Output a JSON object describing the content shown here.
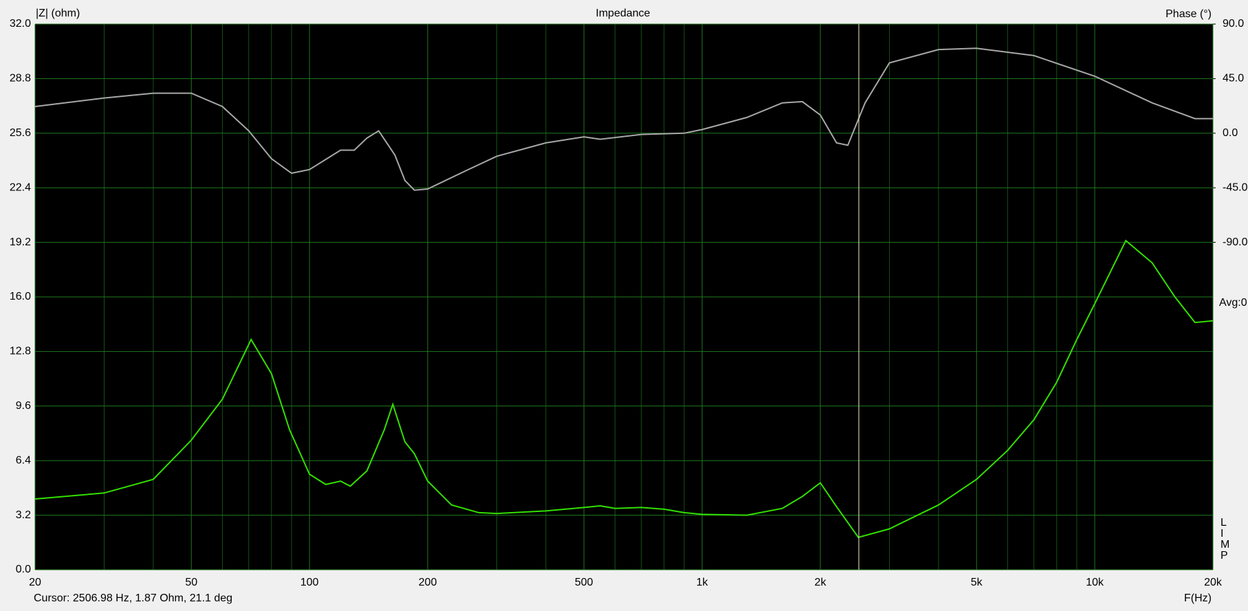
{
  "chart_data": {
    "type": "line",
    "title": "Impedance",
    "y_label": "|Z| (ohm)",
    "y2_label": "Phase (°)",
    "x_label": "F(Hz)",
    "log_x": true,
    "xlim": [
      20,
      20000
    ],
    "xticks": [
      20,
      50,
      100,
      200,
      500,
      {
        "value": 1000,
        "label": "1k"
      },
      {
        "value": 2000,
        "label": "2k"
      },
      {
        "value": 5000,
        "label": "5k"
      },
      {
        "value": 10000,
        "label": "10k"
      },
      {
        "value": 20000,
        "label": "20k"
      }
    ],
    "xgrid": [
      30,
      40,
      60,
      70,
      80,
      90,
      300,
      400,
      600,
      700,
      800,
      900,
      3000,
      4000,
      6000,
      7000,
      8000,
      9000
    ],
    "ylim": [
      0,
      32
    ],
    "yticks": [
      {
        "value": 0,
        "label": "0.0"
      },
      3.2,
      6.4,
      9.6,
      12.8,
      {
        "value": 16,
        "label": "16.0"
      },
      19.2,
      22.4,
      25.6,
      28.8,
      {
        "value": 32,
        "label": "32.0"
      }
    ],
    "y2lim": [
      -360,
      90
    ],
    "y2ticks": [
      {
        "value": -90,
        "label": "-90.0"
      },
      {
        "value": -45,
        "label": "-45.0"
      },
      {
        "value": 0,
        "label": "0.0"
      },
      {
        "value": 45,
        "label": "45.0"
      },
      {
        "value": 90,
        "label": "90.0"
      }
    ],
    "grid": true,
    "avg_label": "Avg:0",
    "side_letters": [
      "L",
      "I",
      "M",
      "P"
    ],
    "cursor": {
      "x": 2506.98,
      "label": "Cursor: 2506.98 Hz, 1.87 Ohm, 21.1 deg"
    },
    "series": [
      {
        "color": "#33e000",
        "x": [
          20,
          30,
          40,
          50,
          60,
          71,
          80,
          89,
          100,
          110,
          120,
          127,
          140,
          155,
          163,
          175,
          185,
          200,
          230,
          270,
          300,
          400,
          500,
          550,
          600,
          700,
          800,
          900,
          1000,
          1300,
          1600,
          1800,
          2000,
          2200,
          2500,
          3000,
          4000,
          5000,
          6000,
          7000,
          8000,
          9000,
          10000,
          12000,
          14000,
          16000,
          18000,
          20000
        ],
        "values": [
          4.15,
          4.5,
          5.3,
          7.6,
          10.0,
          13.5,
          11.5,
          8.2,
          5.6,
          5.0,
          5.2,
          4.9,
          5.8,
          8.2,
          9.7,
          7.5,
          6.8,
          5.2,
          3.8,
          3.35,
          3.3,
          3.45,
          3.65,
          3.75,
          3.6,
          3.65,
          3.55,
          3.35,
          3.25,
          3.2,
          3.6,
          4.3,
          5.1,
          3.7,
          1.9,
          2.4,
          3.8,
          5.3,
          7.0,
          8.8,
          11.0,
          13.5,
          15.6,
          19.3,
          18.0,
          16.0,
          14.5,
          14.6
        ]
      },
      {
        "color": "#a8a8a8",
        "axis": "y2",
        "x": [
          20,
          30,
          40,
          50,
          60,
          70,
          80,
          90,
          100,
          120,
          130,
          140,
          150,
          165,
          175,
          185,
          200,
          250,
          300,
          400,
          500,
          550,
          700,
          900,
          1000,
          1300,
          1600,
          1800,
          2000,
          2200,
          2350,
          2600,
          3000,
          4000,
          5000,
          7000,
          10000,
          14000,
          18000,
          20000
        ],
        "values": [
          22,
          29,
          33,
          33,
          22,
          2,
          -21,
          -33,
          -30,
          -14,
          -14,
          -4,
          2,
          -18,
          -39,
          -47,
          -46,
          -31,
          -19,
          -8,
          -3,
          -5,
          -1,
          0,
          3,
          13,
          25,
          26,
          15,
          -8,
          -10,
          25,
          58,
          69,
          70,
          64,
          47,
          25,
          12,
          12
        ]
      }
    ]
  }
}
